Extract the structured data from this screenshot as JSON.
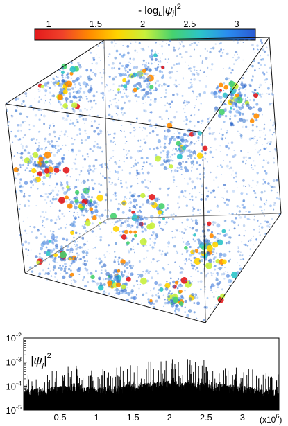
{
  "colorbar": {
    "title_prefix": "- log",
    "title_sub": "L",
    "title_body": "|ψ",
    "title_sub2": "j",
    "title_end": "|",
    "title_sup": "2",
    "ticks": [
      "1",
      "1.5",
      "2",
      "2.5",
      "3"
    ],
    "tick_values": [
      1,
      1.5,
      2,
      2.5,
      3
    ],
    "range": [
      0.85,
      3.2
    ],
    "colors": [
      "#e31a1c",
      "#f0412a",
      "#ff8c00",
      "#ffd400",
      "#c8f03c",
      "#46d26e",
      "#2cc4c8",
      "#2a8cf0",
      "#2a5ad2"
    ]
  },
  "chart_data": {
    "type": "bar",
    "title": "",
    "inset_label": {
      "body": "|ψ",
      "sub": "j",
      "end": "|",
      "sup": "2"
    },
    "xlabel": "",
    "ylabel": "",
    "xlim": [
      0,
      3.5
    ],
    "x_ticks": [
      0.5,
      1,
      1.5,
      2,
      2.5,
      3
    ],
    "x_tick_labels": [
      "0.5",
      "1",
      "1.5",
      "2",
      "2.5",
      "3"
    ],
    "x_scale_label": {
      "base": "(x10",
      "exp": "6",
      "close": ")"
    },
    "ylim": [
      1e-05,
      0.01
    ],
    "y_scale": "log",
    "y_ticks": [
      1e-05,
      0.0001,
      0.001,
      0.01
    ],
    "y_tick_labels": [
      {
        "base": "10",
        "exp": "-5"
      },
      {
        "base": "10",
        "exp": "-4"
      },
      {
        "base": "10",
        "exp": "-3"
      },
      {
        "base": "10",
        "exp": "-2"
      }
    ],
    "envelope": {
      "x": [
        0,
        0.25,
        0.5,
        0.75,
        1.0,
        1.25,
        1.5,
        1.75,
        2.0,
        2.25,
        2.5,
        2.75,
        3.0,
        3.25,
        3.5
      ],
      "peak": [
        0.0003,
        0.0006,
        0.0008,
        0.0007,
        0.0005,
        0.0006,
        0.0008,
        0.0012,
        0.002,
        0.0016,
        0.0013,
        0.0009,
        0.0007,
        0.0005,
        0.0004
      ],
      "base": [
        2e-05,
        2.5e-05,
        3e-05,
        3e-05,
        2.5e-05,
        3e-05,
        3.5e-05,
        4e-05,
        5e-05,
        4.5e-05,
        4e-05,
        3.5e-05,
        3e-05,
        2.5e-05,
        2e-05
      ]
    }
  }
}
